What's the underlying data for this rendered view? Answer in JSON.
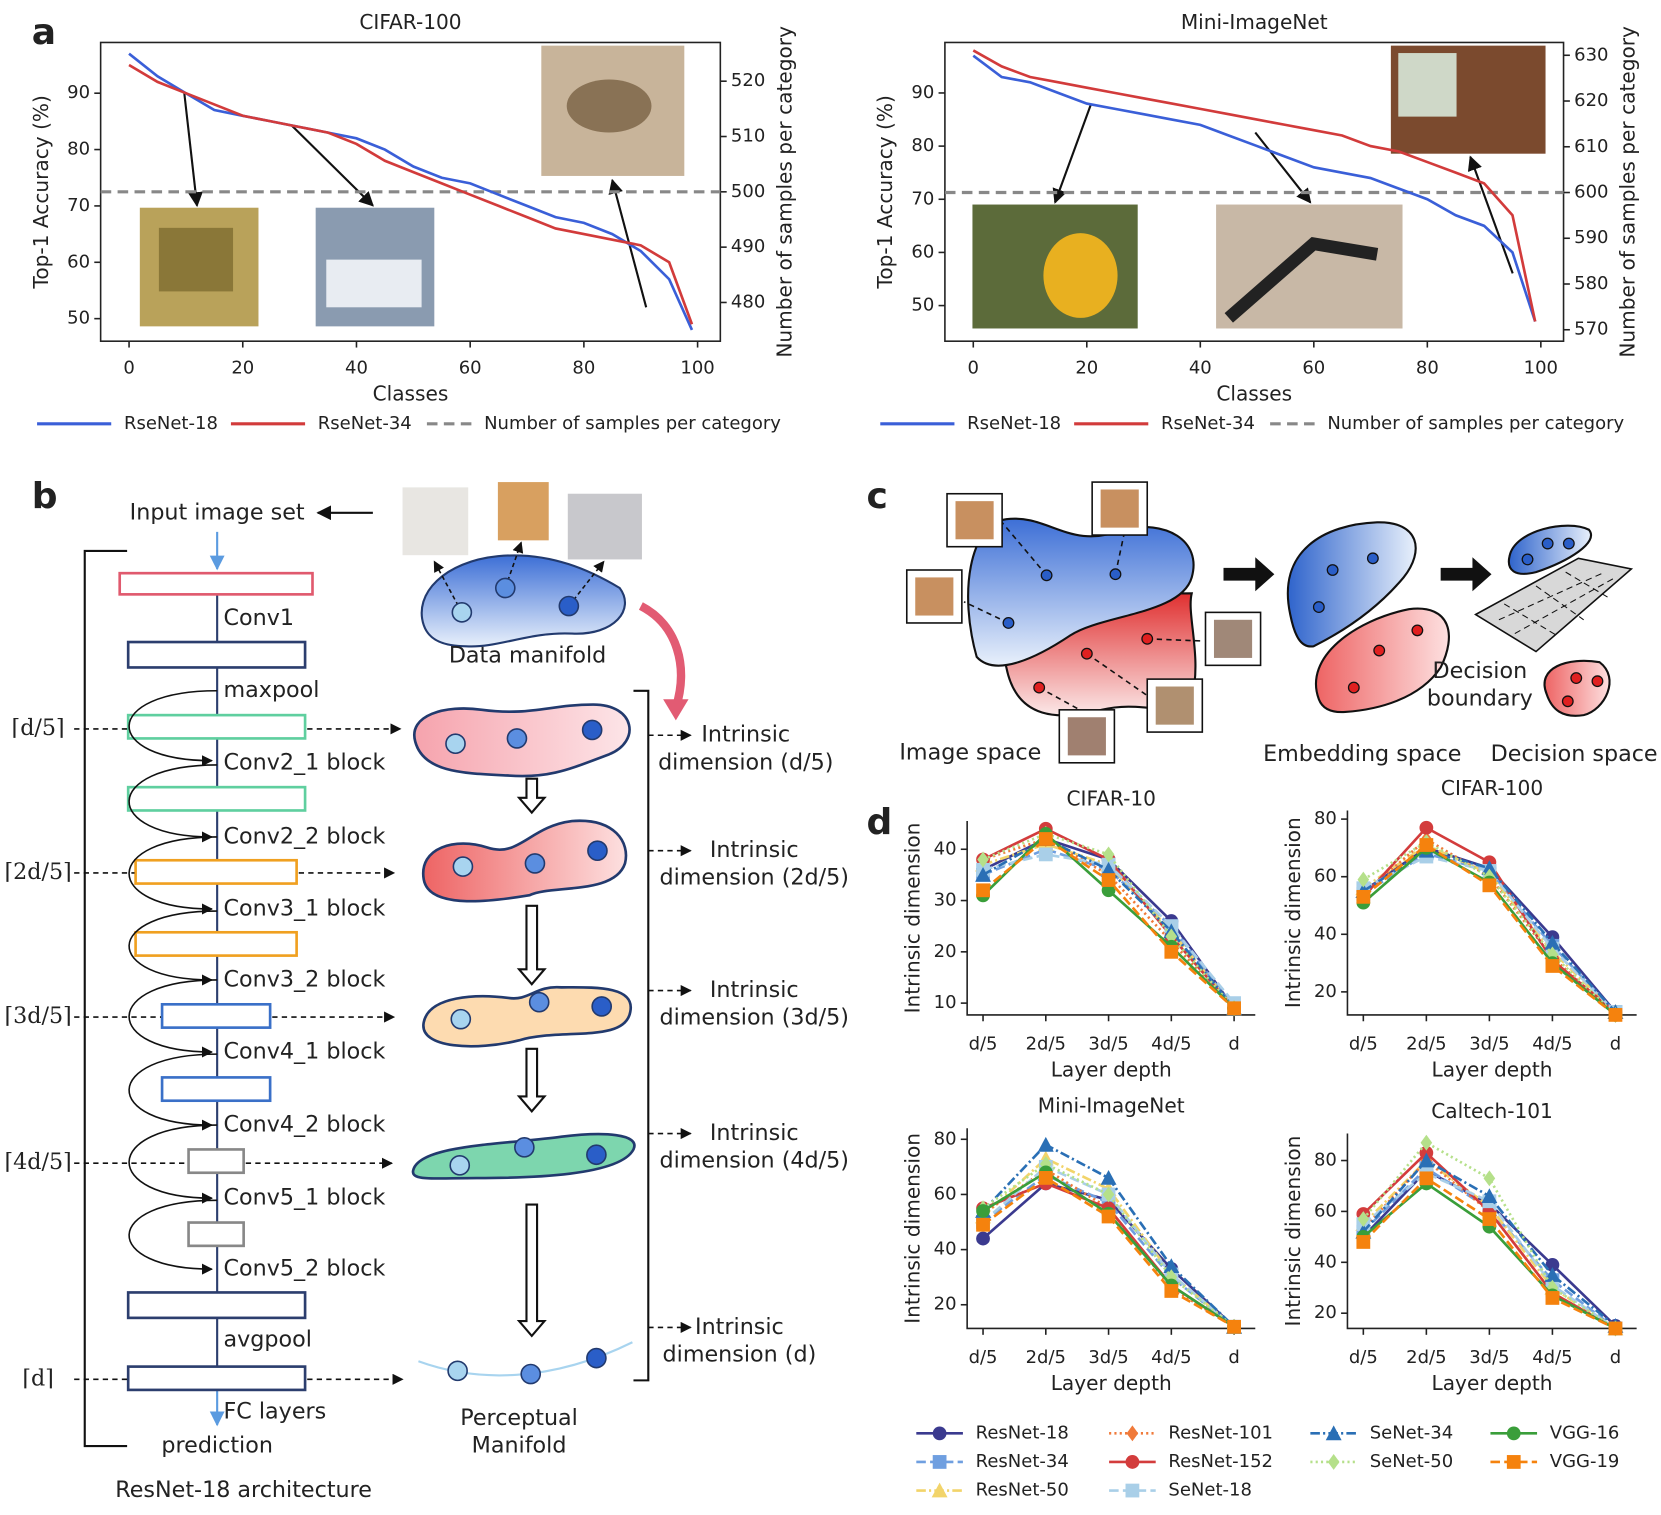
{
  "panel_labels": [
    "a",
    "b",
    "c",
    "d"
  ],
  "chart_data": [
    {
      "type": "line",
      "title": "CIFAR-100",
      "x_label": "Classes",
      "y_label": "Top-1 Accuracy (%)",
      "y2_label": "Number of samples per category",
      "x": [
        0,
        5,
        10,
        15,
        20,
        25,
        30,
        35,
        40,
        45,
        50,
        55,
        60,
        65,
        70,
        75,
        80,
        85,
        90,
        95,
        99
      ],
      "xlim": [
        -5,
        104
      ],
      "xticks": [
        0,
        20,
        40,
        60,
        80,
        100
      ],
      "ylim": [
        46,
        99
      ],
      "yticks": [
        50,
        60,
        70,
        80,
        90
      ],
      "y2lim": [
        473,
        527
      ],
      "y2ticks": [
        480,
        490,
        500,
        510,
        520
      ],
      "series": [
        {
          "name": "RseNet-18",
          "color": "#3a5fd8",
          "values": [
            97,
            93,
            90,
            87,
            86,
            85,
            84,
            83,
            82,
            80,
            77,
            75,
            74,
            72,
            70,
            68,
            67,
            65,
            62,
            57,
            48
          ]
        },
        {
          "name": "RseNet-34",
          "color": "#d23b3b",
          "values": [
            95,
            92,
            90,
            88,
            86,
            85,
            84,
            83,
            81,
            78,
            76,
            74,
            72,
            70,
            68,
            66,
            65,
            64,
            63,
            60,
            49
          ]
        }
      ],
      "reference_line": {
        "name": "Number of samples per category",
        "value": 500,
        "axis": "y2",
        "color": "#888888"
      }
    },
    {
      "type": "line",
      "title": "Mini-ImageNet",
      "x_label": "Classes",
      "y_label": "Top-1 Accuracy (%)",
      "y2_label": "Number of samples per category",
      "x": [
        0,
        5,
        10,
        15,
        20,
        25,
        30,
        35,
        40,
        45,
        50,
        55,
        60,
        65,
        70,
        75,
        80,
        85,
        90,
        95,
        99
      ],
      "xlim": [
        -5,
        104
      ],
      "xticks": [
        0,
        20,
        40,
        60,
        80,
        100
      ],
      "ylim": [
        43.3,
        99.5
      ],
      "yticks": [
        50,
        60,
        70,
        80,
        90
      ],
      "y2lim": [
        567.5,
        632.8
      ],
      "y2ticks": [
        570,
        580,
        590,
        600,
        610,
        620,
        630
      ],
      "series": [
        {
          "name": "RseNet-18",
          "color": "#3a5fd8",
          "values": [
            97,
            93,
            92,
            90,
            88,
            87,
            86,
            85,
            84,
            82,
            80,
            78,
            76,
            75,
            74,
            72,
            70,
            67,
            65,
            60,
            47
          ]
        },
        {
          "name": "RseNet-34",
          "color": "#d23b3b",
          "values": [
            98,
            95,
            93,
            92,
            91,
            90,
            89,
            88,
            87,
            86,
            85,
            84,
            83,
            82,
            80,
            79,
            77,
            75,
            73,
            67,
            47
          ]
        }
      ],
      "reference_line": {
        "name": "Number of samples per category",
        "value": 600,
        "axis": "y2",
        "color": "#888888"
      }
    },
    {
      "type": "line",
      "title": "CIFAR-10",
      "x_label": "Layer depth",
      "y_label": "Intrinsic dimension",
      "categories": [
        "d/5",
        "2d/5",
        "3d/5",
        "4d/5",
        "d"
      ],
      "ylim": [
        7.7,
        45.5
      ],
      "yticks": [
        10,
        20,
        30,
        40
      ],
      "series": [
        {
          "values": [
            36,
            42,
            38,
            26,
            9
          ]
        },
        {
          "values": [
            35,
            40,
            36,
            25,
            9
          ]
        },
        {
          "values": [
            37,
            41,
            37,
            24,
            9
          ]
        },
        {
          "values": [
            38,
            42,
            35,
            22,
            9
          ]
        },
        {
          "values": [
            38,
            44,
            38,
            23,
            9
          ]
        },
        {
          "values": [
            36,
            39,
            37,
            25,
            10
          ]
        },
        {
          "values": [
            35,
            42,
            36,
            24,
            9
          ]
        },
        {
          "values": [
            38,
            43,
            39,
            23,
            9
          ]
        },
        {
          "values": [
            31,
            43,
            32,
            21,
            9
          ]
        },
        {
          "values": [
            32,
            42,
            34,
            20,
            9
          ]
        }
      ]
    },
    {
      "type": "line",
      "title": "CIFAR-100",
      "x_label": "Layer depth",
      "y_label": "Intrinsic dimension",
      "categories": [
        "d/5",
        "2d/5",
        "3d/5",
        "4d/5",
        "d"
      ],
      "ylim": [
        12,
        83
      ],
      "yticks": [
        20,
        40,
        60,
        80
      ],
      "series": [
        {
          "values": [
            55,
            70,
            63,
            39,
            13
          ]
        },
        {
          "values": [
            54,
            68,
            62,
            36,
            13
          ]
        },
        {
          "values": [
            56,
            71,
            61,
            34,
            13
          ]
        },
        {
          "values": [
            54,
            73,
            60,
            32,
            12
          ]
        },
        {
          "values": [
            53,
            77,
            65,
            31,
            13
          ]
        },
        {
          "values": [
            56,
            67,
            62,
            35,
            13
          ]
        },
        {
          "values": [
            55,
            69,
            63,
            37,
            13
          ]
        },
        {
          "values": [
            59,
            72,
            60,
            33,
            12
          ]
        },
        {
          "values": [
            51,
            70,
            58,
            30,
            12
          ]
        },
        {
          "values": [
            53,
            71,
            57,
            29,
            12
          ]
        }
      ]
    },
    {
      "type": "line",
      "title": "Mini-ImageNet",
      "x_label": "Layer depth",
      "y_label": "Intrinsic dimension",
      "categories": [
        "d/5",
        "2d/5",
        "3d/5",
        "4d/5",
        "d"
      ],
      "ylim": [
        11.4,
        84
      ],
      "yticks": [
        20,
        40,
        60,
        80
      ],
      "series": [
        {
          "values": [
            44,
            64,
            58,
            33,
            12
          ]
        },
        {
          "values": [
            50,
            67,
            57,
            30,
            12
          ]
        },
        {
          "values": [
            52,
            73,
            62,
            31,
            12
          ]
        },
        {
          "values": [
            53,
            69,
            55,
            26,
            12
          ]
        },
        {
          "values": [
            55,
            64,
            55,
            27,
            12
          ]
        },
        {
          "values": [
            50,
            70,
            60,
            31,
            12
          ]
        },
        {
          "values": [
            54,
            78,
            66,
            34,
            12
          ]
        },
        {
          "values": [
            55,
            71,
            60,
            30,
            12
          ]
        },
        {
          "values": [
            54,
            68,
            53,
            27,
            12
          ]
        },
        {
          "values": [
            49,
            66,
            52,
            25,
            12
          ]
        }
      ]
    },
    {
      "type": "line",
      "title": "Caltech-101",
      "x_label": "Layer depth",
      "y_label": "Intrinsic dimension",
      "categories": [
        "d/5",
        "2d/5",
        "3d/5",
        "4d/5",
        "d"
      ],
      "ylim": [
        14,
        90.6
      ],
      "yticks": [
        20,
        40,
        60,
        80
      ],
      "series": [
        {
          "values": [
            50,
            76,
            63,
            39,
            15
          ]
        },
        {
          "values": [
            52,
            77,
            61,
            33,
            14
          ]
        },
        {
          "values": [
            55,
            80,
            62,
            30,
            14
          ]
        },
        {
          "values": [
            53,
            80,
            60,
            28,
            14
          ]
        },
        {
          "values": [
            59,
            83,
            60,
            28,
            14
          ]
        },
        {
          "values": [
            55,
            75,
            64,
            31,
            14
          ]
        },
        {
          "values": [
            52,
            80,
            66,
            35,
            15
          ]
        },
        {
          "values": [
            57,
            87,
            73,
            30,
            14
          ]
        },
        {
          "values": [
            50,
            71,
            54,
            27,
            14
          ]
        },
        {
          "values": [
            48,
            73,
            57,
            26,
            14
          ]
        }
      ]
    }
  ],
  "d_legend": {
    "series": [
      {
        "name": "ResNet-18",
        "color": "#3b3a8f",
        "marker": "circle",
        "dash": "solid"
      },
      {
        "name": "ResNet-34",
        "color": "#6f9fe0",
        "marker": "square",
        "dash": "dashed"
      },
      {
        "name": "ResNet-50",
        "color": "#f2d46a",
        "marker": "triangle",
        "dash": "dashdot"
      },
      {
        "name": "ResNet-101",
        "color": "#f07a3a",
        "marker": "diamond",
        "dash": "dotted"
      },
      {
        "name": "ResNet-152",
        "color": "#d33c3c",
        "marker": "circle",
        "dash": "solid"
      },
      {
        "name": "SeNet-18",
        "color": "#a9cfe8",
        "marker": "square",
        "dash": "dashed"
      },
      {
        "name": "SeNet-34",
        "color": "#2a6fb5",
        "marker": "triangle",
        "dash": "dashdot"
      },
      {
        "name": "SeNet-50",
        "color": "#b5e08a",
        "marker": "diamond",
        "dash": "dotted"
      },
      {
        "name": "VGG-16",
        "color": "#3a9e3a",
        "marker": "circle",
        "dash": "solid"
      },
      {
        "name": "VGG-19",
        "color": "#f5820d",
        "marker": "square",
        "dash": "dashed"
      }
    ]
  },
  "diagram_b": {
    "input": "Input image set",
    "layers": [
      "Conv1",
      "maxpool",
      "Conv2_1 block",
      "Conv2_2 block",
      "Conv3_1 block",
      "Conv3_2 block",
      "Conv4_1 block",
      "Conv4_2 block",
      "Conv5_1 block",
      "Conv5_2 block",
      "avgpool",
      "FC layers"
    ],
    "output": "prediction",
    "caption": "ResNet-18 architecture",
    "data_manifold": "Data manifold",
    "perceptual_manifold": [
      "Perceptual",
      "Manifold"
    ],
    "depths": [
      "⌈d/5⌉",
      "⌈2d/5⌉",
      "⌈3d/5⌉",
      "⌈4d/5⌉",
      "⌈d⌉"
    ],
    "intrinsic": [
      [
        "Intrinsic",
        "dimension (d/5)"
      ],
      [
        "Intrinsic",
        "dimension (2d/5)"
      ],
      [
        "Intrinsic",
        "dimension (3d/5)"
      ],
      [
        "Intrinsic",
        "dimension (4d/5)"
      ],
      [
        "Intrinsic",
        "dimension (d)"
      ]
    ]
  },
  "diagram_c": {
    "image_space": "Image space",
    "embedding_space": "Embedding space",
    "decision_space": "Decision space",
    "decision_boundary": [
      "Decision",
      "boundary"
    ]
  }
}
